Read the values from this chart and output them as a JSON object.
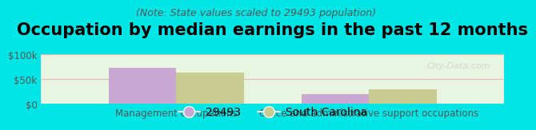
{
  "title": "Occupation by median earnings in the past 12 months",
  "subtitle": "(Note: State values scaled to 29493 population)",
  "background_color": "#00e5e5",
  "plot_bg_color": "#e8f5e0",
  "categories": [
    "Management occupations",
    "Office and administrative support occupations"
  ],
  "series": [
    {
      "name": "29493",
      "color": "#c9a8d4",
      "values": [
        72000,
        20000
      ]
    },
    {
      "name": "South Carolina",
      "color": "#c8cc90",
      "values": [
        63000,
        30000
      ]
    }
  ],
  "ylim": [
    0,
    100000
  ],
  "yticks": [
    0,
    50000,
    100000
  ],
  "ytick_labels": [
    "$0",
    "$50k",
    "$100k"
  ],
  "grid_color": "#e8b8b8",
  "bar_width": 0.35,
  "watermark": "City-Data.com",
  "title_fontsize": 15,
  "subtitle_fontsize": 9,
  "axis_label_fontsize": 8.5,
  "legend_fontsize": 10
}
